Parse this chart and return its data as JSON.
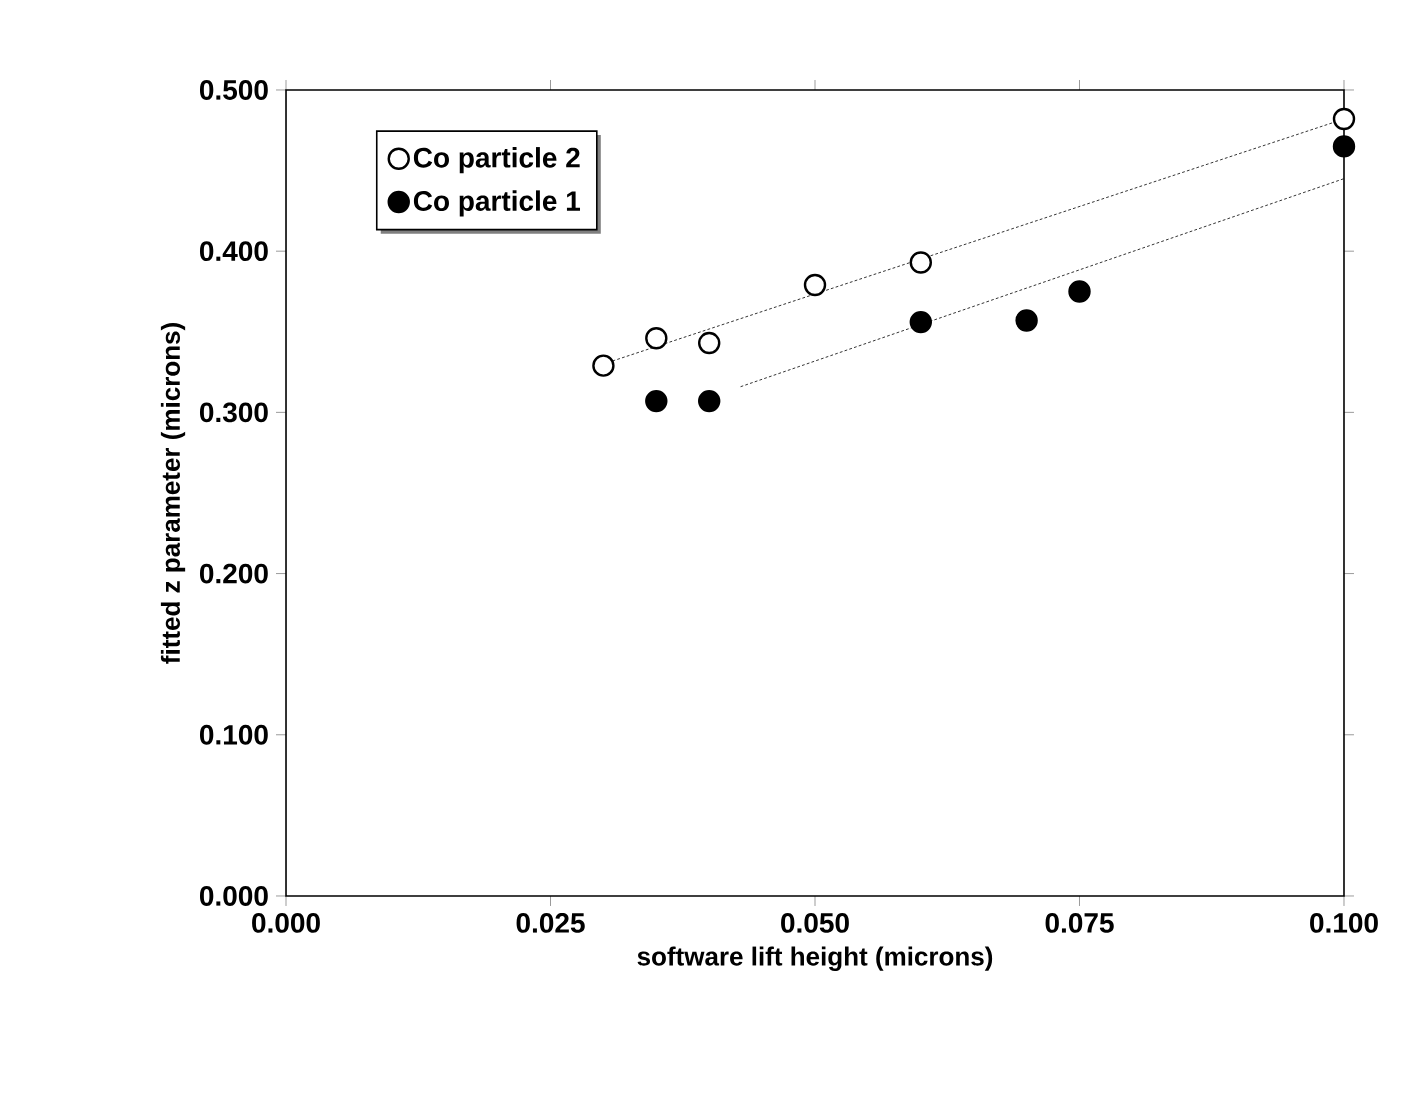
{
  "chart_data": {
    "type": "scatter",
    "xlabel": "software lift height (microns)",
    "ylabel": "fitted z parameter (microns)",
    "xlim": [
      0,
      0.1
    ],
    "ylim": [
      0,
      0.5
    ],
    "xticks": [
      {
        "value": 0,
        "label": "0.000"
      },
      {
        "value": 0.025,
        "label": "0.025"
      },
      {
        "value": 0.05,
        "label": "0.050"
      },
      {
        "value": 0.075,
        "label": "0.075"
      },
      {
        "value": 0.1,
        "label": "0.100"
      }
    ],
    "yticks": [
      {
        "value": 0,
        "label": "0.000"
      },
      {
        "value": 0.1,
        "label": "0.100"
      },
      {
        "value": 0.2,
        "label": "0.200"
      },
      {
        "value": 0.3,
        "label": "0.300"
      },
      {
        "value": 0.4,
        "label": "0.400"
      },
      {
        "value": 0.5,
        "label": "0.500"
      }
    ],
    "grid": false,
    "legend": "top left",
    "series": [
      {
        "name": "Co particle 2",
        "color": "#ffffff",
        "x": [
          0.03,
          0.035,
          0.04,
          0.05,
          0.06,
          0.1
        ],
        "values": [
          0.329,
          0.346,
          0.343,
          0.379,
          0.393,
          0.482
        ]
      },
      {
        "name": "Co particle 1",
        "color": "#000000",
        "x": [
          0.035,
          0.04,
          0.06,
          0.07,
          0.075,
          0.1
        ],
        "values": [
          0.307,
          0.307,
          0.356,
          0.357,
          0.375,
          0.465
        ]
      },
      {
        "type": "line",
        "color": "#000000",
        "line_style": "dotted",
        "marker": "none",
        "x": [
          0.03,
          0.1
        ],
        "values": [
          0.33,
          0.482
        ]
      },
      {
        "type": "line",
        "color": "#000000",
        "line_style": "dotted",
        "marker": "none",
        "x": [
          0.043,
          0.1
        ],
        "values": [
          0.316,
          0.445
        ]
      }
    ]
  }
}
